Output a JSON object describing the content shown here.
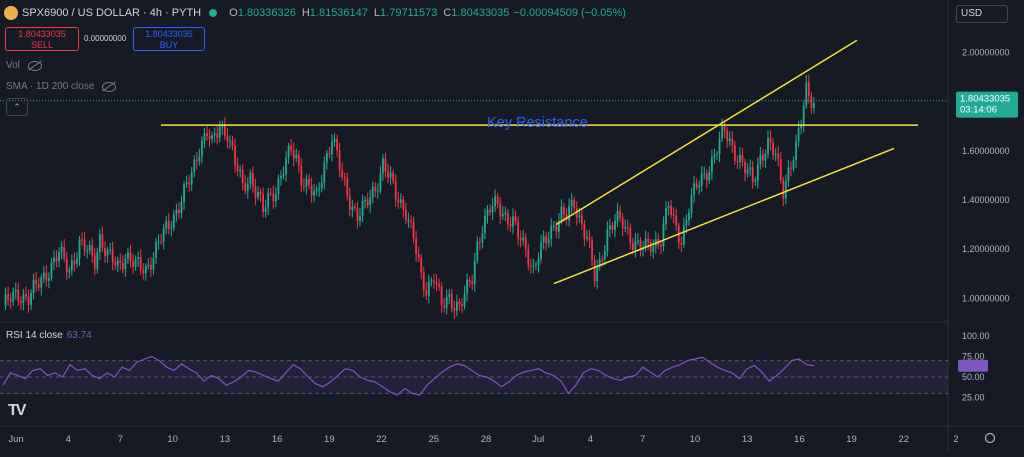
{
  "header": {
    "symbol_title": "SPX6900 / US DOLLAR · 4h · PYTH",
    "ohlc": [
      {
        "k": "O",
        "v": "1.80336326"
      },
      {
        "k": "H",
        "v": "1.81536147"
      },
      {
        "k": "L",
        "v": "1.79711573"
      },
      {
        "k": "C",
        "v": "1.80433035"
      }
    ],
    "change": "−0.00094509 (−0.05%)",
    "currency": "USD"
  },
  "trade": {
    "sell_price": "1.80433035",
    "sell_label": "SELL",
    "buy_price": "1.80433035",
    "buy_label": "BUY",
    "spread": "0.00000000"
  },
  "indicators": {
    "vol": "Vol",
    "sma": "SMA · 1D 200 close"
  },
  "collapse_icon": "chevron-up-icon",
  "price_label": {
    "price": "1.80433035",
    "countdown": "03:14:06"
  },
  "rsi": {
    "label": "RSI 14 close",
    "value": "63.74"
  },
  "annotation": "Key Resistance",
  "logo": "TV",
  "colors": {
    "up": "#22ab94",
    "down": "#f23645",
    "rsi_line": "#7e57c2",
    "annotation_line": "#f5e13c",
    "annotation_text": "#2962ff",
    "price_label_bg": "#22ab94"
  },
  "chart_data": [
    {
      "type": "candlestick",
      "title": "SPX6900 / US DOLLAR · 4h · PYTH",
      "x_ticks": [
        "Jun",
        "4",
        "7",
        "10",
        "13",
        "16",
        "19",
        "22",
        "25",
        "28",
        "Jul",
        "4",
        "7",
        "10",
        "13",
        "16",
        "19",
        "22",
        "2"
      ],
      "y_ticks": [
        "2.00000000",
        "1.80000000",
        "1.60000000",
        "1.40000000",
        "1.20000000",
        "1.00000000"
      ],
      "ylim": [
        0.92,
        2.1
      ],
      "last_price": 1.80433035,
      "close_path": [
        [
          0,
          0.97
        ],
        [
          6,
          1.02
        ],
        [
          10,
          1.0
        ],
        [
          14,
          1.06
        ],
        [
          18,
          1.12
        ],
        [
          22,
          1.18
        ],
        [
          26,
          1.12
        ],
        [
          30,
          1.22
        ],
        [
          33,
          1.19
        ],
        [
          36,
          1.16
        ],
        [
          38,
          1.25
        ],
        [
          41,
          1.17
        ],
        [
          45,
          1.13
        ],
        [
          48,
          1.18
        ],
        [
          52,
          1.13
        ],
        [
          56,
          1.12
        ],
        [
          60,
          1.2
        ],
        [
          62,
          1.24
        ],
        [
          66,
          1.32
        ],
        [
          70,
          1.4
        ],
        [
          74,
          1.5
        ],
        [
          77,
          1.62
        ],
        [
          80,
          1.68
        ],
        [
          82,
          1.62
        ],
        [
          85,
          1.7
        ],
        [
          88,
          1.68
        ],
        [
          91,
          1.55
        ],
        [
          94,
          1.45
        ],
        [
          97,
          1.5
        ],
        [
          100,
          1.42
        ],
        [
          102,
          1.35
        ],
        [
          104,
          1.4
        ],
        [
          107,
          1.45
        ],
        [
          110,
          1.53
        ],
        [
          113,
          1.6
        ],
        [
          115,
          1.57
        ],
        [
          117,
          1.5
        ],
        [
          120,
          1.45
        ],
        [
          123,
          1.4
        ],
        [
          126,
          1.55
        ],
        [
          129,
          1.66
        ],
        [
          131,
          1.58
        ],
        [
          133,
          1.48
        ],
        [
          136,
          1.4
        ],
        [
          139,
          1.34
        ],
        [
          142,
          1.37
        ],
        [
          146,
          1.45
        ],
        [
          149,
          1.55
        ],
        [
          151,
          1.5
        ],
        [
          154,
          1.42
        ],
        [
          158,
          1.36
        ],
        [
          161,
          1.24
        ],
        [
          164,
          1.08
        ],
        [
          166,
          1.04
        ],
        [
          169,
          1.1
        ],
        [
          172,
          0.96
        ],
        [
          175,
          1.0
        ],
        [
          179,
          0.97
        ],
        [
          182,
          1.03
        ],
        [
          184,
          1.08
        ],
        [
          186,
          1.22
        ],
        [
          188,
          1.3
        ],
        [
          191,
          1.36
        ],
        [
          194,
          1.38
        ],
        [
          197,
          1.34
        ],
        [
          200,
          1.31
        ],
        [
          202,
          1.25
        ],
        [
          205,
          1.2
        ],
        [
          208,
          1.12
        ],
        [
          210,
          1.18
        ],
        [
          213,
          1.23
        ],
        [
          216,
          1.3
        ],
        [
          219,
          1.35
        ],
        [
          221,
          1.33
        ],
        [
          224,
          1.38
        ],
        [
          226,
          1.33
        ],
        [
          229,
          1.26
        ],
        [
          232,
          1.08
        ],
        [
          234,
          1.13
        ],
        [
          237,
          1.28
        ],
        [
          240,
          1.32
        ],
        [
          243,
          1.3
        ],
        [
          246,
          1.25
        ],
        [
          249,
          1.22
        ],
        [
          252,
          1.2
        ],
        [
          255,
          1.22
        ],
        [
          258,
          1.25
        ],
        [
          261,
          1.38
        ],
        [
          263,
          1.3
        ],
        [
          266,
          1.24
        ],
        [
          269,
          1.38
        ],
        [
          272,
          1.45
        ],
        [
          275,
          1.5
        ],
        [
          278,
          1.56
        ],
        [
          281,
          1.63
        ],
        [
          283,
          1.68
        ],
        [
          286,
          1.62
        ],
        [
          288,
          1.58
        ],
        [
          291,
          1.52
        ],
        [
          294,
          1.48
        ],
        [
          297,
          1.58
        ],
        [
          300,
          1.62
        ],
        [
          303,
          1.58
        ],
        [
          306,
          1.45
        ],
        [
          308,
          1.52
        ],
        [
          311,
          1.6
        ],
        [
          313,
          1.72
        ],
        [
          315,
          1.86
        ],
        [
          317,
          1.82
        ],
        [
          318,
          1.8
        ]
      ]
    },
    {
      "type": "line",
      "title": "RSI 14 close",
      "y_ticks": [
        "100.00",
        "75.00",
        "50.00",
        "25.00"
      ],
      "ylim": [
        0,
        100
      ],
      "bands": [
        30,
        50,
        70
      ],
      "last_value": 63.74,
      "values": [
        40,
        55,
        52,
        48,
        58,
        60,
        52,
        55,
        50,
        65,
        58,
        60,
        52,
        48,
        55,
        50,
        62,
        58,
        68,
        72,
        75,
        70,
        62,
        58,
        66,
        60,
        55,
        45,
        52,
        48,
        40,
        44,
        50,
        58,
        56,
        52,
        48,
        45,
        55,
        65,
        60,
        50,
        42,
        38,
        44,
        52,
        60,
        58,
        50,
        46,
        44,
        38,
        32,
        28,
        36,
        30,
        28,
        40,
        48,
        56,
        62,
        66,
        64,
        58,
        52,
        50,
        45,
        38,
        44,
        52,
        56,
        58,
        60,
        55,
        52,
        45,
        30,
        40,
        55,
        60,
        58,
        52,
        48,
        46,
        50,
        52,
        62,
        56,
        50,
        58,
        62,
        65,
        70,
        72,
        74,
        68,
        62,
        58,
        55,
        48,
        60,
        64,
        56,
        45,
        52,
        60,
        70,
        72,
        65,
        63.74
      ]
    }
  ]
}
